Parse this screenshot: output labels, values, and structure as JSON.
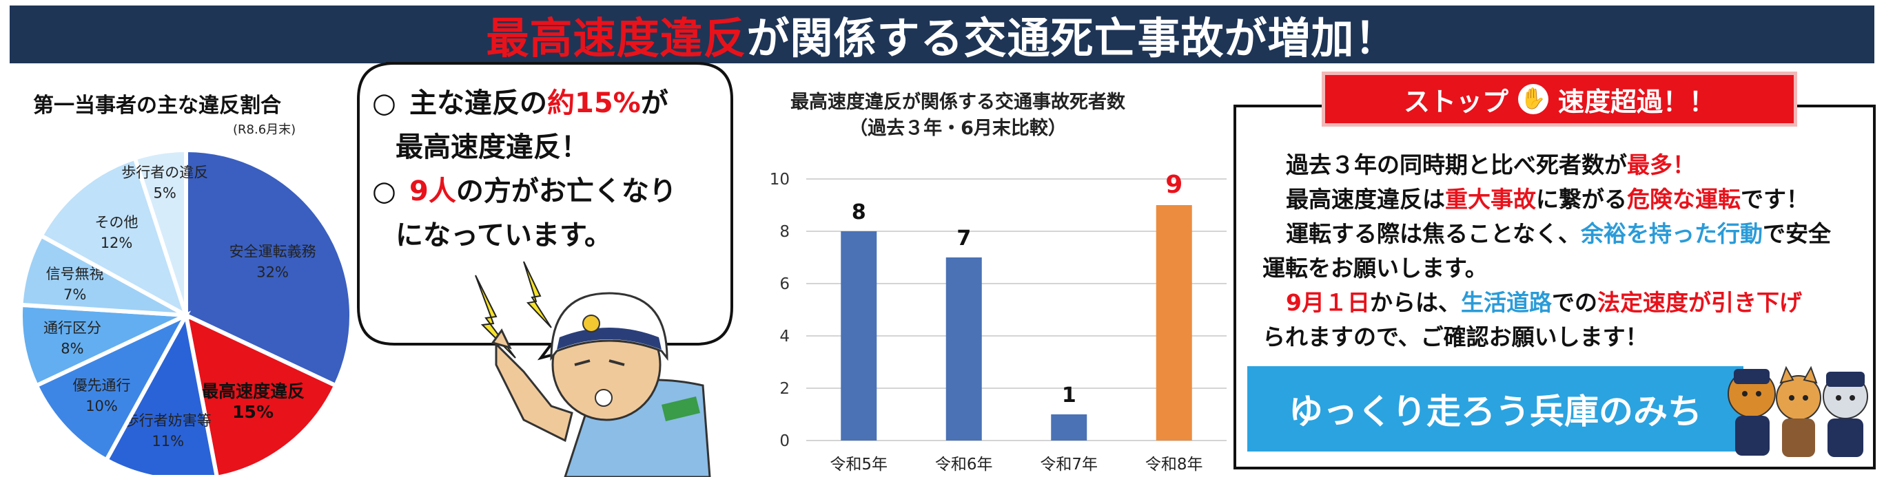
{
  "banner": {
    "title_red": "最高速度違反",
    "title_rest": "が関係する交通死亡事故が増加！"
  },
  "pie": {
    "title": "第一当事者の主な違反割合",
    "note": "(R8.6月末)"
  },
  "bubble": {
    "mark": "○",
    "line1_a": "主な違反の",
    "line1_red": "約15%",
    "line1_b": "が",
    "line2": "最高速度違反！",
    "line3_red": "9人",
    "line3_b": "の方がお亡くなり",
    "line4": "になっています。"
  },
  "bar": {
    "title_line1": "最高速度違反が関係する交通事故死者数",
    "title_line2": "（過去３年・6月末比較）"
  },
  "stop": {
    "header_a": "ストップ",
    "header_hand": "✋",
    "header_b": "速度超過！！",
    "l1_a": "過去３年の同時期と比べ死者数が",
    "l1_red": "最多！",
    "l2_a": "最高速度違反は",
    "l2_red1": "重大事故",
    "l2_b": "に繋がる",
    "l2_red2": "危険な運転",
    "l2_c": "です！",
    "l3_a": "運転する際は焦ることなく、",
    "l3_blue": "余裕を持った行動",
    "l3_b": "で安全",
    "l4": "運転をお願いします。",
    "l5_red1": "9月１日",
    "l5_a": "からは、",
    "l5_blue": "生活道路",
    "l5_b": "での",
    "l5_red2": "法定速度が引き下げ",
    "l6": "られますので、ご確認お願いします！",
    "slogan": "ゆっくり走ろう兵庫のみち"
  },
  "colors": {
    "banner_bg": "#1e3556",
    "red": "#e8121b",
    "bar_blue": "#4a72b5",
    "bar_orange": "#ec8c3f",
    "accent_blue": "#2ba3e0"
  },
  "chart_data": [
    {
      "type": "pie",
      "title": "第一当事者の主な違反割合",
      "subtitle": "(R8.6月末)",
      "slices": [
        {
          "label": "安全運転義務",
          "value": 32,
          "display": "32%",
          "color": "#3a5fc0"
        },
        {
          "label": "最高速度違反",
          "value": 15,
          "display": "15%",
          "color": "#e8121b"
        },
        {
          "label": "歩行者妨害等",
          "value": 11,
          "display": "11%",
          "color": "#2a63d8"
        },
        {
          "label": "優先通行",
          "value": 10,
          "display": "10%",
          "color": "#3e86e6"
        },
        {
          "label": "通行区分",
          "value": 8,
          "display": "8%",
          "color": "#63aef0"
        },
        {
          "label": "信号無視",
          "value": 7,
          "display": "7%",
          "color": "#9fd1f6"
        },
        {
          "label": "その他",
          "value": 12,
          "display": "12%",
          "color": "#bfe1fa"
        },
        {
          "label": "歩行者の違反",
          "value": 5,
          "display": "5%",
          "color": "#d6ecfb"
        }
      ]
    },
    {
      "type": "bar",
      "title": "最高速度違反が関係する交通事故死者数",
      "subtitle": "（過去３年・6月末比較）",
      "categories": [
        "令和5年",
        "令和6年",
        "令和7年",
        "令和8年"
      ],
      "values": [
        8,
        7,
        1,
        9
      ],
      "colors": [
        "#4a72b5",
        "#4a72b5",
        "#4a72b5",
        "#ec8c3f"
      ],
      "label_colors": [
        "#111111",
        "#111111",
        "#111111",
        "#e8121b"
      ],
      "ylim": [
        0,
        10
      ],
      "yticks": [
        0,
        2,
        4,
        6,
        8,
        10
      ],
      "grid": true
    }
  ]
}
